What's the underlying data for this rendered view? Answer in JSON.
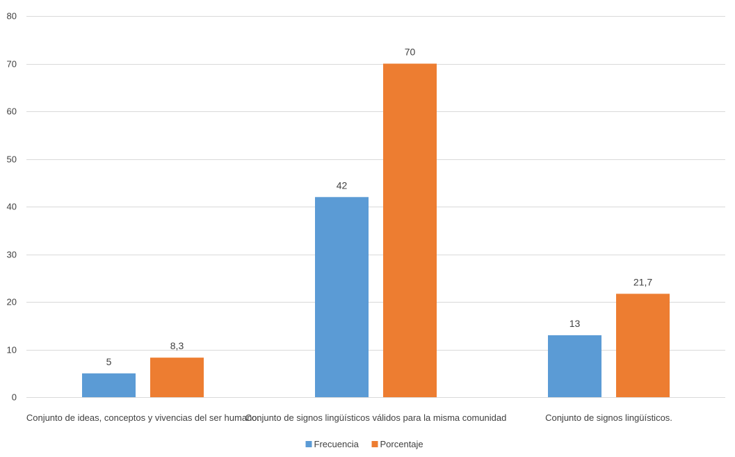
{
  "chart_data": {
    "type": "bar",
    "categories": [
      "Conjunto de ideas, conceptos y vivencias del ser humano.",
      "Conjunto de signos lingüísticos válidos para la misma comunidad",
      "Conjunto de signos lingüísticos."
    ],
    "series": [
      {
        "name": "Frecuencia",
        "values": [
          5,
          42,
          13
        ],
        "labels": [
          "5",
          "42",
          "13"
        ],
        "color": "#5b9bd5"
      },
      {
        "name": "Porcentaje",
        "values": [
          8.3,
          70,
          21.7
        ],
        "labels": [
          "8,3",
          "70",
          "21,7"
        ],
        "color": "#ed7d31"
      }
    ],
    "ylim": [
      0,
      80
    ],
    "yticks": [
      0,
      10,
      20,
      30,
      40,
      50,
      60,
      70,
      80
    ],
    "grid": true,
    "gridline_color": "#d9d9d9",
    "legend_position": "bottom",
    "title": "",
    "xlabel": "",
    "ylabel": ""
  }
}
